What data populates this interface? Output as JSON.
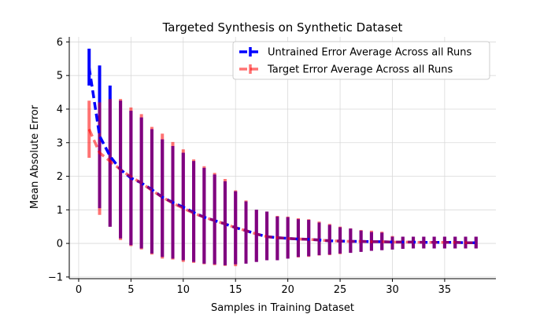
{
  "chart_data": {
    "type": "line",
    "title": "Targeted Synthesis on Synthetic Dataset",
    "xlabel": "Samples in Training Dataset",
    "ylabel": "Mean Absolute Error",
    "xlim": [
      -0.9,
      39.9
    ],
    "ylim": [
      -1.05,
      6.15
    ],
    "xticks": [
      0,
      5,
      10,
      15,
      20,
      25,
      30,
      35
    ],
    "yticks": [
      -1,
      0,
      1,
      2,
      3,
      4,
      5,
      6
    ],
    "grid": true,
    "legend_position": "top-right",
    "x": [
      1,
      2,
      3,
      4,
      5,
      6,
      7,
      8,
      9,
      10,
      11,
      12,
      13,
      14,
      15,
      16,
      17,
      18,
      19,
      20,
      21,
      22,
      23,
      24,
      25,
      26,
      27,
      28,
      29,
      30,
      31,
      32,
      33,
      34,
      35,
      36,
      37,
      38
    ],
    "series": [
      {
        "name": "Untrained Error Average Across all Runs",
        "color": "#0000ff",
        "dash": "dashed",
        "values": [
          5.25,
          3.2,
          2.6,
          2.2,
          1.95,
          1.8,
          1.6,
          1.38,
          1.22,
          1.08,
          0.92,
          0.78,
          0.68,
          0.58,
          0.47,
          0.38,
          0.28,
          0.2,
          0.17,
          0.15,
          0.13,
          0.12,
          0.1,
          0.08,
          0.07,
          0.06,
          0.06,
          0.05,
          0.05,
          0.04,
          0.04,
          0.04,
          0.03,
          0.03,
          0.03,
          0.03,
          0.02,
          0.02
        ],
        "lower": [
          4.7,
          1.05,
          0.5,
          0.15,
          -0.05,
          -0.15,
          -0.3,
          -0.4,
          -0.45,
          -0.5,
          -0.55,
          -0.6,
          -0.62,
          -0.65,
          -0.62,
          -0.6,
          -0.55,
          -0.5,
          -0.5,
          -0.45,
          -0.4,
          -0.38,
          -0.35,
          -0.33,
          -0.3,
          -0.28,
          -0.25,
          -0.22,
          -0.2,
          -0.18,
          -0.16,
          -0.15,
          -0.15,
          -0.15,
          -0.15,
          -0.15,
          -0.15,
          -0.15
        ],
        "upper": [
          5.8,
          5.3,
          4.7,
          4.25,
          3.95,
          3.75,
          3.4,
          3.1,
          2.9,
          2.7,
          2.45,
          2.25,
          2.05,
          1.85,
          1.55,
          1.25,
          1.0,
          0.95,
          0.8,
          0.78,
          0.72,
          0.7,
          0.62,
          0.55,
          0.48,
          0.44,
          0.38,
          0.34,
          0.32,
          0.2,
          0.2,
          0.2,
          0.2,
          0.2,
          0.2,
          0.2,
          0.2,
          0.2
        ]
      },
      {
        "name": "Target Error Average Across all Runs",
        "color": "#ff0000",
        "alpha": 0.55,
        "dash": "dashed",
        "values": [
          3.4,
          2.7,
          2.45,
          2.2,
          1.98,
          1.8,
          1.58,
          1.38,
          1.2,
          1.05,
          0.9,
          0.78,
          0.68,
          0.58,
          0.47,
          0.38,
          0.28,
          0.2,
          0.17,
          0.15,
          0.13,
          0.12,
          0.1,
          0.08,
          0.07,
          0.06,
          0.06,
          0.05,
          0.05,
          0.04,
          0.04,
          0.04,
          0.03,
          0.03,
          0.03,
          0.03,
          0.02,
          0.02
        ],
        "lower": [
          2.55,
          0.85,
          0.5,
          0.1,
          -0.08,
          -0.18,
          -0.33,
          -0.45,
          -0.48,
          -0.55,
          -0.58,
          -0.62,
          -0.65,
          -0.67,
          -0.68,
          -0.6,
          -0.55,
          -0.5,
          -0.5,
          -0.45,
          -0.42,
          -0.4,
          -0.36,
          -0.35,
          -0.32,
          -0.28,
          -0.25,
          -0.22,
          -0.2,
          -0.18,
          -0.16,
          -0.15,
          -0.15,
          -0.15,
          -0.15,
          -0.15,
          -0.15,
          -0.15
        ],
        "upper": [
          4.25,
          4.2,
          4.3,
          4.3,
          4.05,
          3.85,
          3.47,
          3.27,
          3.02,
          2.8,
          2.5,
          2.3,
          2.1,
          1.92,
          1.58,
          1.28,
          1.0,
          0.95,
          0.82,
          0.8,
          0.75,
          0.72,
          0.65,
          0.58,
          0.5,
          0.45,
          0.4,
          0.38,
          0.35,
          0.22,
          0.2,
          0.2,
          0.2,
          0.2,
          0.2,
          0.2,
          0.2,
          0.2
        ]
      }
    ]
  }
}
